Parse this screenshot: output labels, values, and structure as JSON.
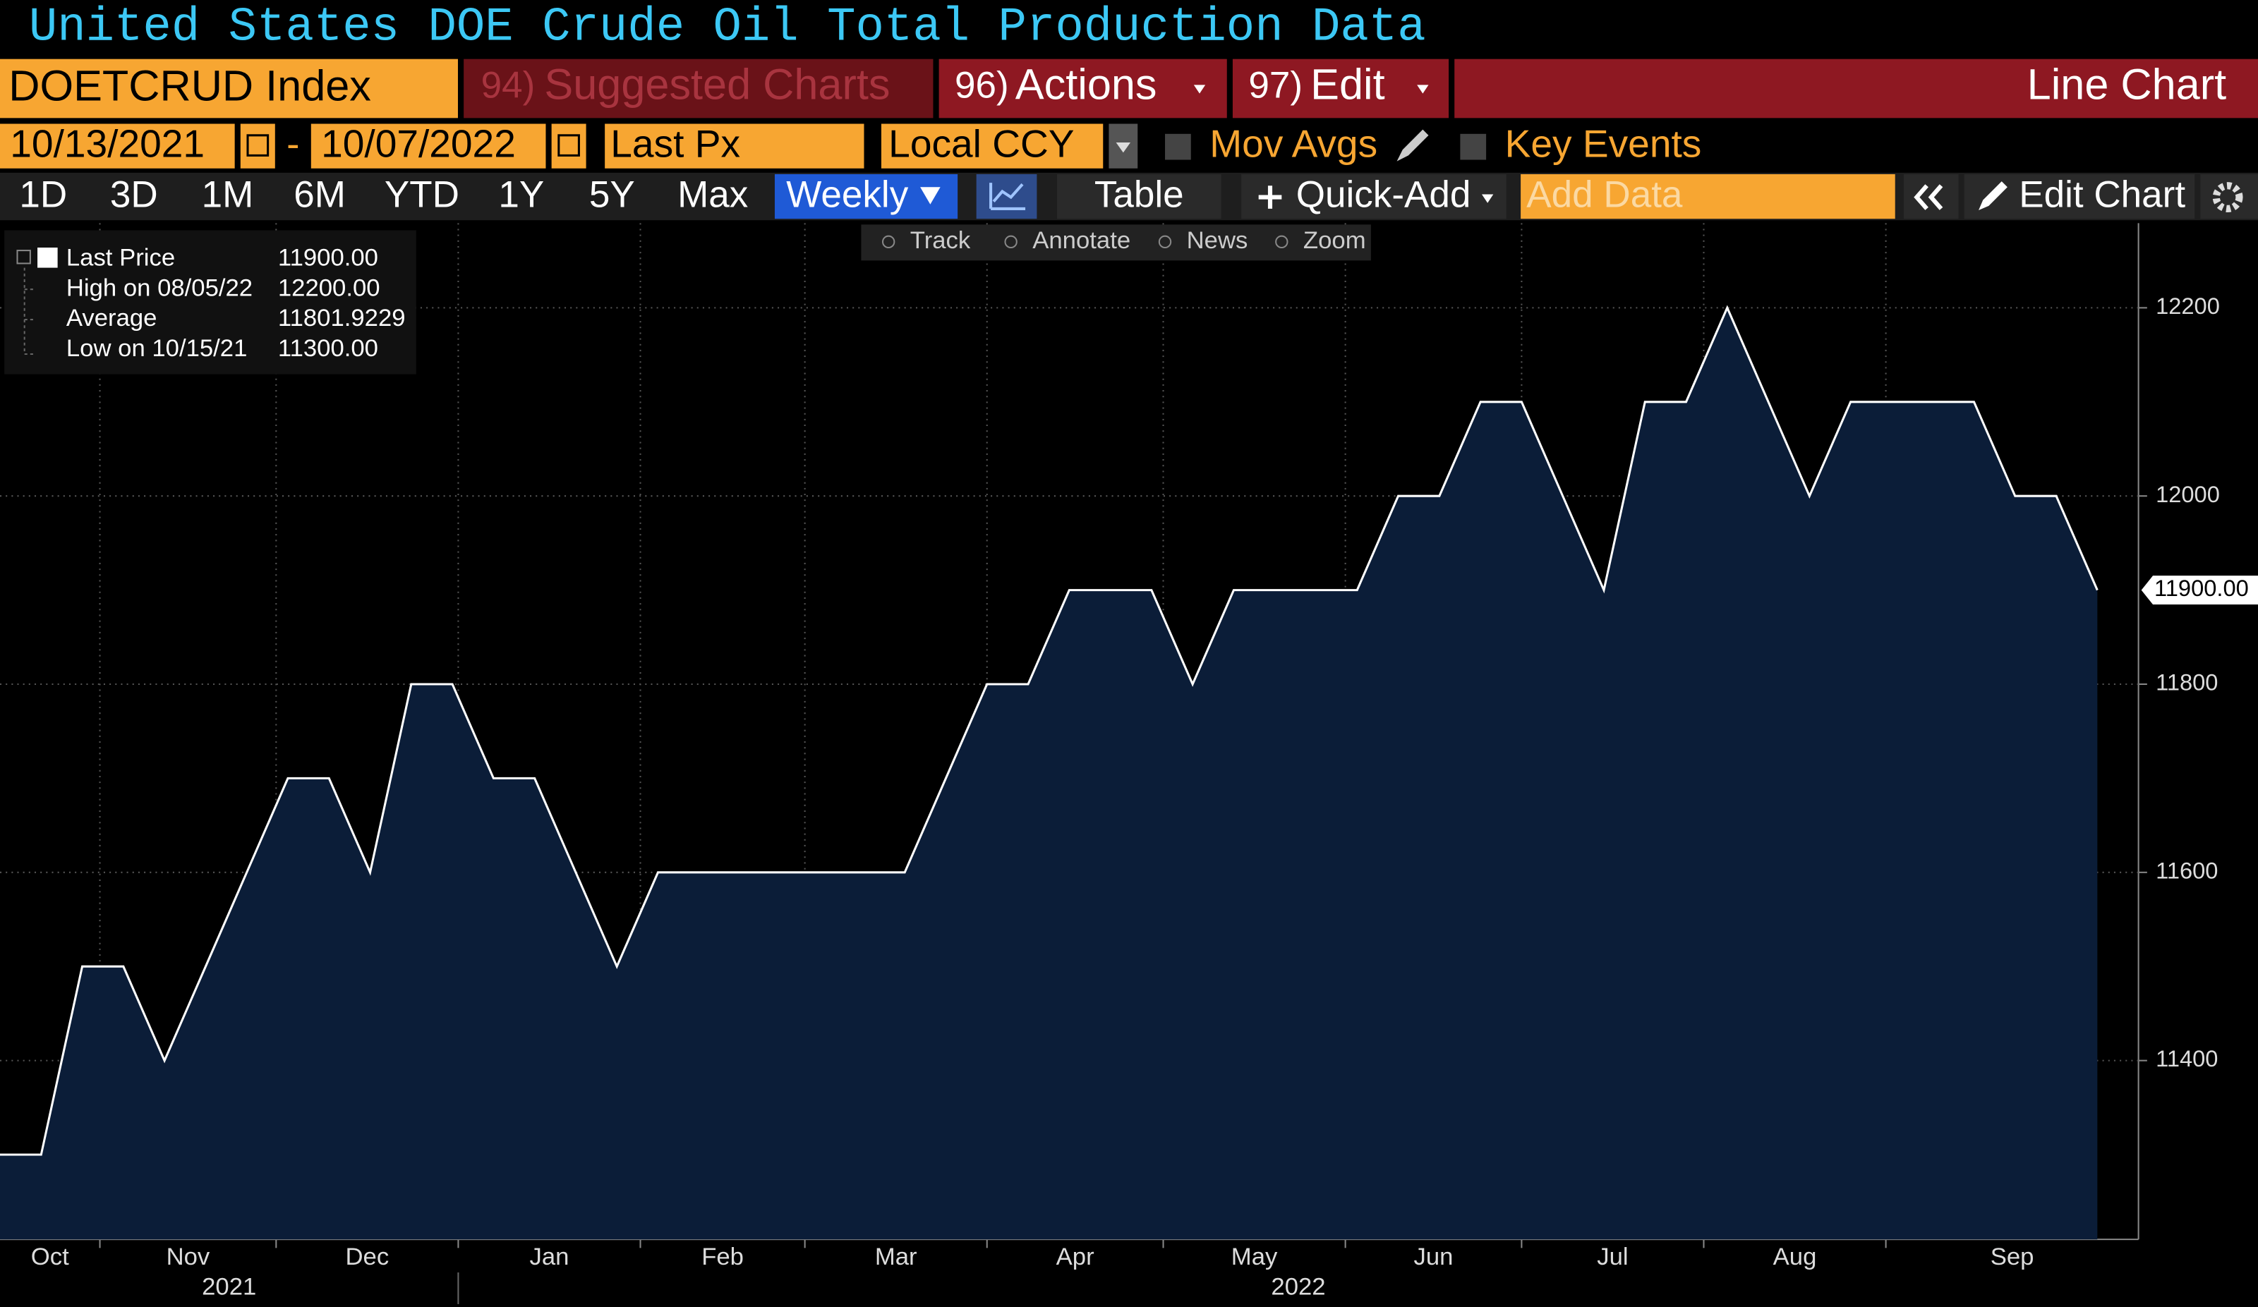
{
  "title": "United States DOE Crude Oil Total Production Data",
  "toolbar1": {
    "ticker": "DOETCRUD Index",
    "suggested_num": "94)",
    "suggested": "Suggested Charts",
    "actions_num": "96)",
    "actions": "Actions",
    "edit_num": "97)",
    "edit": "Edit",
    "chart_type": "Line Chart"
  },
  "toolbar2": {
    "start": "10/13/2021",
    "dash": "-",
    "end": "10/07/2022",
    "field": "Last Px",
    "currency": "Local CCY",
    "mov_avgs": "Mov Avgs",
    "key_events": "Key Events"
  },
  "toolbar3": {
    "periods": [
      "1D",
      "3D",
      "1M",
      "6M",
      "YTD",
      "1Y",
      "5Y",
      "Max"
    ],
    "frequency": "Weekly",
    "table": "Table",
    "quick_add": "Quick-Add",
    "add_data": "Add Data",
    "edit_chart": "Edit Chart"
  },
  "chart_tools": [
    "Track",
    "Annotate",
    "News",
    "Zoom"
  ],
  "legend": {
    "rows": [
      [
        "Last Price",
        "11900.00"
      ],
      [
        "High on 08/05/22",
        "12200.00"
      ],
      [
        "Average",
        "11801.9229"
      ],
      [
        "Low on 10/15/21",
        "11300.00"
      ]
    ]
  },
  "chart_data": {
    "type": "line",
    "x": [
      "2021-10-15",
      "2021-10-22",
      "2021-10-29",
      "2021-11-05",
      "2021-11-12",
      "2021-11-19",
      "2021-11-26",
      "2021-12-03",
      "2021-12-10",
      "2021-12-17",
      "2021-12-24",
      "2021-12-31",
      "2022-01-07",
      "2022-01-14",
      "2022-01-21",
      "2022-01-28",
      "2022-02-04",
      "2022-02-11",
      "2022-02-18",
      "2022-02-25",
      "2022-03-04",
      "2022-03-11",
      "2022-03-18",
      "2022-03-25",
      "2022-04-01",
      "2022-04-08",
      "2022-04-15",
      "2022-04-22",
      "2022-04-29",
      "2022-05-06",
      "2022-05-13",
      "2022-05-20",
      "2022-05-27",
      "2022-06-03",
      "2022-06-10",
      "2022-06-17",
      "2022-06-24",
      "2022-07-01",
      "2022-07-08",
      "2022-07-15",
      "2022-07-22",
      "2022-07-29",
      "2022-08-05",
      "2022-08-12",
      "2022-08-19",
      "2022-08-26",
      "2022-09-02",
      "2022-09-09",
      "2022-09-16",
      "2022-09-23",
      "2022-09-30",
      "2022-10-07"
    ],
    "series": [
      {
        "name": "Last Price",
        "color": "#ffffff",
        "fill": "#0b1d38",
        "values": [
          11300,
          11300,
          11500,
          11500,
          11400,
          11500,
          11600,
          11700,
          11700,
          11600,
          11800,
          11800,
          11700,
          11700,
          11600,
          11500,
          11600,
          11600,
          11600,
          11600,
          11600,
          11600,
          11600,
          11700,
          11800,
          11800,
          11900,
          11900,
          11900,
          11800,
          11900,
          11900,
          11900,
          11900,
          12000,
          12000,
          12100,
          12100,
          12000,
          11900,
          12100,
          12100,
          12200,
          12100,
          12000,
          12100,
          12100,
          12100,
          12100,
          12000,
          12000,
          11900
        ]
      }
    ],
    "last_value_label": "11900.00",
    "xlim": [
      "2021-10-15",
      "2022-10-14"
    ],
    "xticks": [
      {
        "value": "2021-10-01",
        "label": "Oct"
      },
      {
        "value": "2021-11-01",
        "label": "Nov"
      },
      {
        "value": "2021-12-01",
        "label": "Dec"
      },
      {
        "value": "2022-01-01",
        "label": "Jan"
      },
      {
        "value": "2022-02-01",
        "label": "Feb"
      },
      {
        "value": "2022-03-01",
        "label": "Mar"
      },
      {
        "value": "2022-04-01",
        "label": "Apr"
      },
      {
        "value": "2022-05-01",
        "label": "May"
      },
      {
        "value": "2022-06-01",
        "label": "Jun"
      },
      {
        "value": "2022-07-01",
        "label": "Jul"
      },
      {
        "value": "2022-08-01",
        "label": "Aug"
      },
      {
        "value": "2022-09-01",
        "label": "Sep"
      }
    ],
    "years": [
      {
        "value": "2021-01-01",
        "label": "2021"
      },
      {
        "value": "2022-01-01",
        "label": "2022"
      }
    ],
    "ylim": [
      11210,
      12290
    ],
    "yticks": [
      11400,
      11600,
      11800,
      12000,
      12200
    ],
    "grid": true
  }
}
